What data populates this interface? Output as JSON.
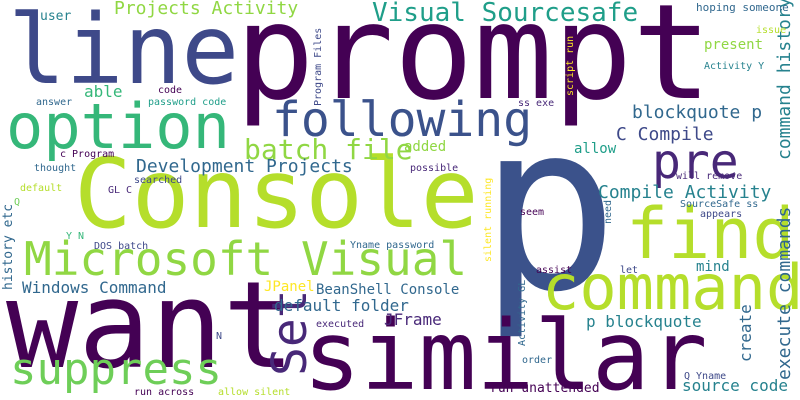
{
  "words": [
    {
      "text": "prompt",
      "color": "#440154"
    },
    {
      "text": "p",
      "color": "#3b528b"
    },
    {
      "text": "want",
      "color": "#440154"
    },
    {
      "text": "Console",
      "color": "#b5de2b"
    },
    {
      "text": "similar",
      "color": "#440154"
    },
    {
      "text": "line",
      "color": "#3e4989"
    },
    {
      "text": "option",
      "color": "#35b779"
    },
    {
      "text": "command",
      "color": "#b5de2b"
    },
    {
      "text": "find",
      "color": "#b5de2b"
    },
    {
      "text": "Microsoft Visual",
      "color": "#90d743"
    },
    {
      "text": "suppress",
      "color": "#6ece58"
    },
    {
      "text": "following",
      "color": "#3b528b"
    },
    {
      "text": "pre",
      "color": "#482878"
    },
    {
      "text": "Set",
      "color": "#482878"
    },
    {
      "text": "batch file",
      "color": "#90d743"
    },
    {
      "text": "Visual Sourcesafe",
      "color": "#1f9e89"
    },
    {
      "text": "Development Projects",
      "color": "#31688e"
    },
    {
      "text": "Projects Activity",
      "color": "#90d743"
    },
    {
      "text": "blockquote p",
      "color": "#31688e"
    },
    {
      "text": "C Compile",
      "color": "#3e4989"
    },
    {
      "text": "Compile Activity",
      "color": "#26828e"
    },
    {
      "text": "command history",
      "color": "#26828e"
    },
    {
      "text": "execute commands",
      "color": "#31688e"
    },
    {
      "text": "Windows Command",
      "color": "#31688e"
    },
    {
      "text": "default folder",
      "color": "#31688e"
    },
    {
      "text": "p blockquote",
      "color": "#26828e"
    },
    {
      "text": "JFrame",
      "color": "#482878"
    },
    {
      "text": "JPanel",
      "color": "#fde725"
    },
    {
      "text": "BeanShell Console",
      "color": "#31688e"
    },
    {
      "text": "create",
      "color": "#31688e"
    },
    {
      "text": "source code",
      "color": "#26828e"
    },
    {
      "text": "mind",
      "color": "#26828e"
    },
    {
      "text": "present",
      "color": "#90d743"
    },
    {
      "text": "able",
      "color": "#35b779"
    },
    {
      "text": "added",
      "color": "#90d743"
    },
    {
      "text": "allow",
      "color": "#1f9e89"
    },
    {
      "text": "user",
      "color": "#26828e"
    },
    {
      "text": "history etc",
      "color": "#31688e"
    },
    {
      "text": "run unattended",
      "color": "#440154"
    },
    {
      "text": "hoping someone",
      "color": "#31688e"
    },
    {
      "text": "issue",
      "color": "#b5de2b"
    },
    {
      "text": "Activity Y",
      "color": "#26828e"
    },
    {
      "text": "code",
      "color": "#440154"
    },
    {
      "text": "password code",
      "color": "#1f9e89"
    },
    {
      "text": "answer",
      "color": "#31688e"
    },
    {
      "text": "Program Files",
      "color": "#3e4989"
    },
    {
      "text": "script run",
      "color": "#fde725"
    },
    {
      "text": "ss exe",
      "color": "#482878"
    },
    {
      "text": "c Program",
      "color": "#440154"
    },
    {
      "text": "thought",
      "color": "#31688e"
    },
    {
      "text": "GL C",
      "color": "#482878"
    },
    {
      "text": "default",
      "color": "#b5de2b"
    },
    {
      "text": "searched",
      "color": "#3e4989"
    },
    {
      "text": "possible",
      "color": "#482878"
    },
    {
      "text": "will remove",
      "color": "#482878"
    },
    {
      "text": "SourceSafe ss",
      "color": "#31688e"
    },
    {
      "text": "appears",
      "color": "#3e4989"
    },
    {
      "text": "need",
      "color": "#31688e"
    },
    {
      "text": "seem",
      "color": "#440154"
    },
    {
      "text": "silent running",
      "color": "#fde725"
    },
    {
      "text": "Y N",
      "color": "#35b779"
    },
    {
      "text": "DOS batch",
      "color": "#3e4989"
    },
    {
      "text": "Yname password",
      "color": "#31688e"
    },
    {
      "text": "assist",
      "color": "#440154"
    },
    {
      "text": "let",
      "color": "#3e4989"
    },
    {
      "text": "Activity GL",
      "color": "#31688e"
    },
    {
      "text": "executed",
      "color": "#482878"
    },
    {
      "text": "N",
      "color": "#3e4989"
    },
    {
      "text": "order",
      "color": "#31688e"
    },
    {
      "text": "Q Yname",
      "color": "#3e4989"
    },
    {
      "text": "run across",
      "color": "#440154"
    },
    {
      "text": "allow silent",
      "color": "#b5de2b"
    },
    {
      "text": "Q",
      "color": "#6ece58"
    }
  ]
}
